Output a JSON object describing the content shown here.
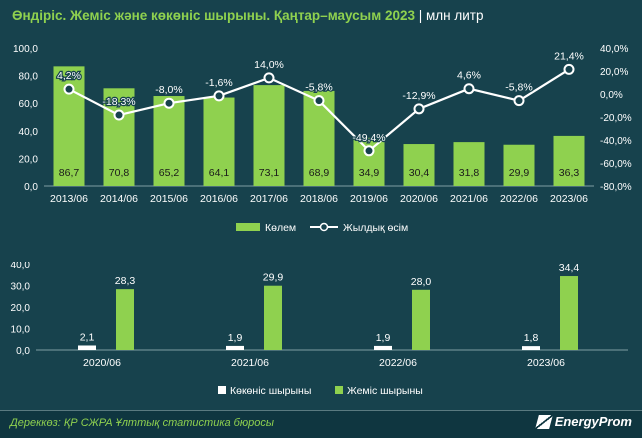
{
  "header": {
    "title": "Өндіріс. Жеміс және көкөніс шырыны. Қаңтар–маусым 2023",
    "unit": "| млн литр"
  },
  "footer": {
    "source": "Дереккөз: ҚР СЖРА Ұлттық статистика бюросы",
    "logo": "EnergyProm"
  },
  "colors": {
    "background": "#17424d",
    "bar_green": "#8fd14f",
    "bar_white": "#ffffff",
    "line": "#ffffff"
  },
  "chart_data": [
    {
      "type": "bar",
      "categories": [
        "2013/06",
        "2014/06",
        "2015/06",
        "2016/06",
        "2017/06",
        "2018/06",
        "2019/06",
        "2020/06",
        "2021/06",
        "2022/06",
        "2023/06"
      ],
      "series": [
        {
          "name": "Көлем",
          "type": "bar",
          "axis": "left",
          "values": [
            86.7,
            70.8,
            65.2,
            64.1,
            73.1,
            68.9,
            34.9,
            30.4,
            31.8,
            29.9,
            36.3
          ],
          "labels": [
            "86,7",
            "70,8",
            "65,2",
            "64,1",
            "73,1",
            "68,9",
            "34,9",
            "30,4",
            "31,8",
            "29,9",
            "36,3"
          ]
        },
        {
          "name": "Жылдық өсім",
          "type": "line",
          "axis": "right",
          "values": [
            4.2,
            -18.3,
            -8.0,
            -1.6,
            14.0,
            -5.8,
            -49.4,
            -12.9,
            4.6,
            -5.8,
            21.4
          ],
          "labels": [
            "4,2%",
            "-18,3%",
            "-8,0%",
            "-1,6%",
            "14,0%",
            "-5,8%",
            "-49,4%",
            "-12,9%",
            "4,6%",
            "-5,8%",
            "21,4%"
          ]
        }
      ],
      "ylim": [
        0,
        100
      ],
      "yticks": [
        "0,0",
        "20,0",
        "40,0",
        "60,0",
        "80,0",
        "100,0"
      ],
      "y2lim": [
        -80,
        40
      ],
      "y2ticks": [
        "-80,0%",
        "-60,0%",
        "-40,0%",
        "-20,0%",
        "0,0%",
        "20,0%",
        "40,0%"
      ],
      "legend": [
        "Көлем",
        "Жылдық өсім"
      ],
      "legend_position": "bottom",
      "grid": false
    },
    {
      "type": "bar",
      "categories": [
        "2020/06",
        "2021/06",
        "2022/06",
        "2023/06"
      ],
      "series": [
        {
          "name": "Көкөніс шырыны",
          "values": [
            2.1,
            1.9,
            1.9,
            1.8
          ],
          "labels": [
            "2,1",
            "1,9",
            "1,9",
            "1,8"
          ]
        },
        {
          "name": "Жеміс шырыны",
          "values": [
            28.3,
            29.9,
            28.0,
            34.4
          ],
          "labels": [
            "28,3",
            "29,9",
            "28,0",
            "34,4"
          ]
        }
      ],
      "ylim": [
        0,
        40
      ],
      "yticks": [
        "0,0",
        "10,0",
        "20,0",
        "30,0",
        "40,0"
      ],
      "legend": [
        "Көкөніс шырыны",
        "Жеміс шырыны"
      ],
      "legend_position": "bottom",
      "grid": false
    }
  ]
}
